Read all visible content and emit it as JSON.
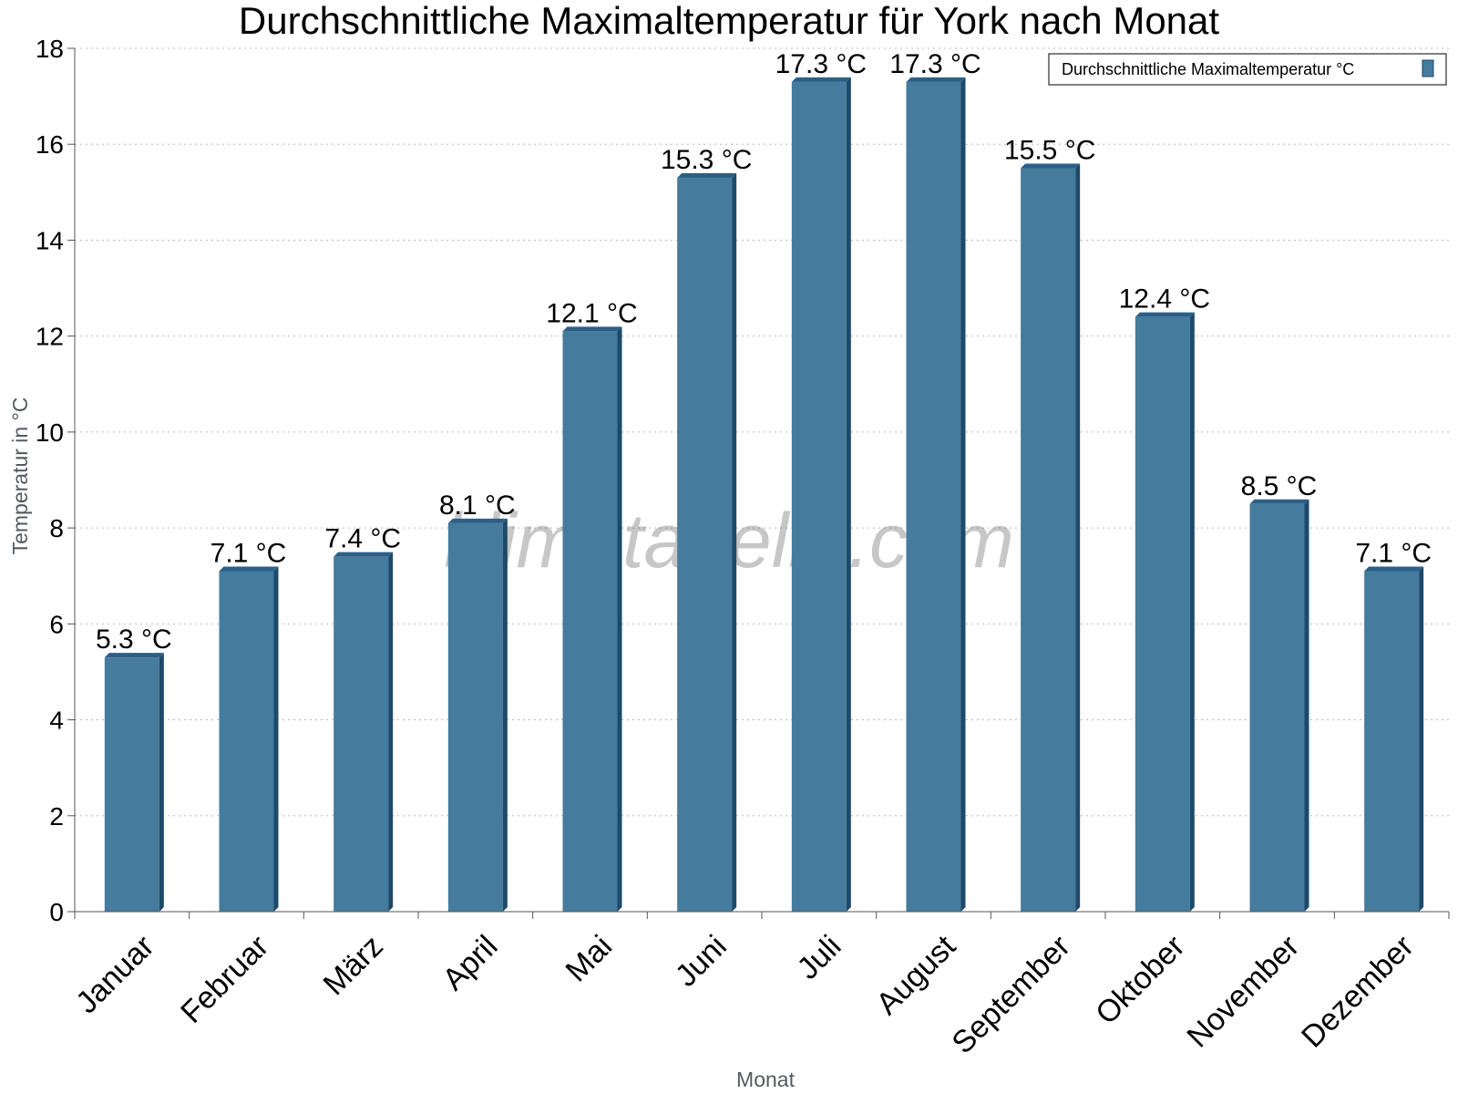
{
  "chart_data": {
    "type": "bar",
    "title": "Durchschnittliche Maximaltemperatur für York nach Monat",
    "xlabel": "Monat",
    "ylabel": "Temperatur in °C",
    "categories": [
      "Januar",
      "Februar",
      "März",
      "April",
      "Mai",
      "Juni",
      "Juli",
      "August",
      "September",
      "Oktober",
      "November",
      "Dezember"
    ],
    "series": [
      {
        "name": "Durchschnittliche Maximaltemperatur °C",
        "values": [
          5.3,
          7.1,
          7.4,
          8.1,
          12.1,
          15.3,
          17.3,
          17.3,
          15.5,
          12.4,
          8.5,
          7.1
        ],
        "labels": [
          "5.3 °C",
          "7.1 °C",
          "7.4 °C",
          "8.1 °C",
          "12.1 °C",
          "15.3 °C",
          "17.3 °C",
          "17.3 °C",
          "15.5 °C",
          "12.4 °C",
          "8.5 °C",
          "7.1 °C"
        ],
        "color": "#457b9d"
      }
    ],
    "ylim": [
      0,
      18
    ],
    "yticks": [
      0,
      2,
      4,
      6,
      8,
      10,
      12,
      14,
      16,
      18
    ],
    "grid": true,
    "legend_position": "top-right"
  },
  "watermark": "klimatabelle.com",
  "colors": {
    "bar_face": "#457b9d",
    "bar_side": "#1d4a6b",
    "bar_top": "#2c5f86",
    "grid": "#bbbbbb",
    "axis": "#555555"
  }
}
